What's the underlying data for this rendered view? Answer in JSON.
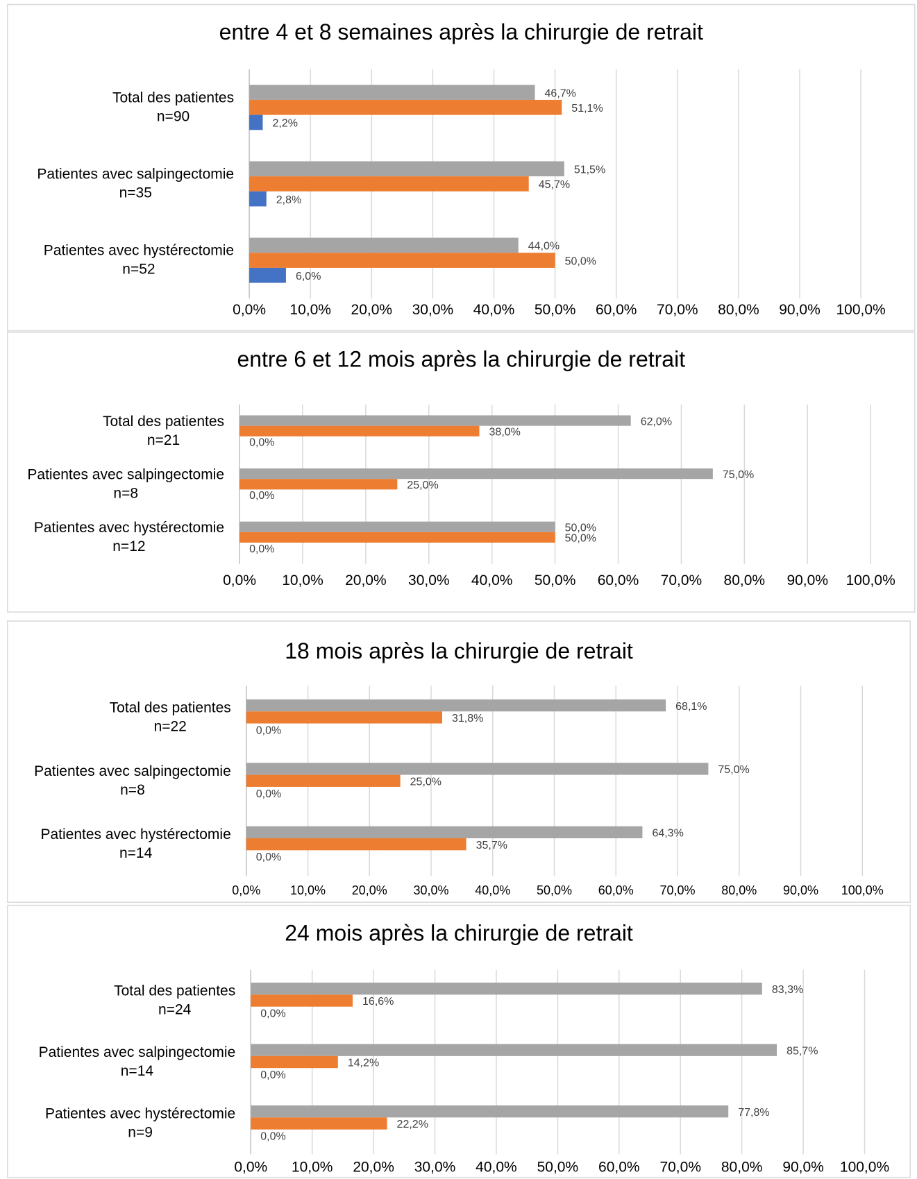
{
  "chart_data": [
    {
      "type": "bar",
      "orientation": "horizontal",
      "title": "entre 4 et 8 semaines après la chirurgie de retrait",
      "categories": [
        [
          "Total des patientes",
          "n=90"
        ],
        [
          "Patientes avec salpingectomie",
          "n=35"
        ],
        [
          "Patientes avec hystérectomie",
          "n=52"
        ]
      ],
      "series": [
        {
          "color": "#a5a5a5",
          "values": [
            46.7,
            51.5,
            44.0
          ],
          "value_labels": [
            "46,7%",
            "51,5%",
            "44,0%"
          ]
        },
        {
          "color": "#ed7d31",
          "values": [
            51.1,
            45.7,
            50.0
          ],
          "value_labels": [
            "51,1%",
            "45,7%",
            "50,0%"
          ]
        },
        {
          "color": "#4472c4",
          "values": [
            2.2,
            2.8,
            6.0
          ],
          "value_labels": [
            "2,2%",
            "2,8%",
            "6,0%"
          ]
        }
      ],
      "xlim": [
        0,
        100
      ],
      "xticks": [
        {
          "value": 0,
          "label": "0,0%"
        },
        {
          "value": 10,
          "label": "10,0%"
        },
        {
          "value": 20,
          "label": "20,0%"
        },
        {
          "value": 30,
          "label": "30,0%"
        },
        {
          "value": 40,
          "label": "40,0%"
        },
        {
          "value": 50,
          "label": "50,0%"
        },
        {
          "value": 60,
          "label": "60,0%"
        },
        {
          "value": 70,
          "label": "70,0%"
        },
        {
          "value": 80,
          "label": "80,0%"
        },
        {
          "value": 90,
          "label": "90,0%"
        },
        {
          "value": 100,
          "label": "100,0%"
        }
      ],
      "grid": true
    },
    {
      "type": "bar",
      "orientation": "horizontal",
      "title": "entre 6 et 12 mois après la chirurgie de retrait",
      "categories": [
        [
          "Total des patientes",
          "n=21"
        ],
        [
          "Patientes avec salpingectomie",
          "n=8"
        ],
        [
          "Patientes avec hystérectomie",
          "n=12"
        ]
      ],
      "series": [
        {
          "color": "#a5a5a5",
          "values": [
            62.0,
            75.0,
            50.0
          ],
          "value_labels": [
            "62,0%",
            "75,0%",
            "50,0%"
          ]
        },
        {
          "color": "#ed7d31",
          "values": [
            38.0,
            25.0,
            50.0
          ],
          "value_labels": [
            "38,0%",
            "25,0%",
            "50,0%"
          ]
        },
        {
          "color": "#4472c4",
          "values": [
            0,
            0,
            0
          ],
          "value_labels": [
            "0,0%",
            "0,0%",
            "0,0%"
          ]
        }
      ],
      "xlim": [
        0,
        100
      ],
      "xticks": [
        {
          "value": 0,
          "label": "0,0%"
        },
        {
          "value": 10,
          "label": "10,0%"
        },
        {
          "value": 20,
          "label": "20,0%"
        },
        {
          "value": 30,
          "label": "30,0%"
        },
        {
          "value": 40,
          "label": "40,0%"
        },
        {
          "value": 50,
          "label": "50,0%"
        },
        {
          "value": 60,
          "label": "60,0%"
        },
        {
          "value": 70,
          "label": "70,0%"
        },
        {
          "value": 80,
          "label": "80,0%"
        },
        {
          "value": 90,
          "label": "90,0%"
        },
        {
          "value": 100,
          "label": "100,0%"
        }
      ],
      "grid": true
    },
    {
      "type": "bar",
      "orientation": "horizontal",
      "title": "18 mois après la chirurgie de retrait",
      "categories": [
        [
          "Total des patientes",
          "n=22"
        ],
        [
          "Patientes avec salpingectomie",
          "n=8"
        ],
        [
          "Patientes avec hystérectomie",
          "n=14"
        ]
      ],
      "series": [
        {
          "color": "#a5a5a5",
          "values": [
            68.1,
            75.0,
            64.3
          ],
          "value_labels": [
            "68,1%",
            "75,0%",
            "64,3%"
          ]
        },
        {
          "color": "#ed7d31",
          "values": [
            31.8,
            25.0,
            35.7
          ],
          "value_labels": [
            "31,8%",
            "25,0%",
            "35,7%"
          ]
        },
        {
          "color": "#4472c4",
          "values": [
            0,
            0,
            0
          ],
          "value_labels": [
            "0,0%",
            "0,0%",
            "0,0%"
          ]
        }
      ],
      "xlim": [
        0,
        100
      ],
      "xticks": [
        {
          "value": 0,
          "label": "0,0%"
        },
        {
          "value": 10,
          "label": "10,0%"
        },
        {
          "value": 20,
          "label": "20,0%"
        },
        {
          "value": 30,
          "label": "30,0%"
        },
        {
          "value": 40,
          "label": "40,0%"
        },
        {
          "value": 50,
          "label": "50,0%"
        },
        {
          "value": 60,
          "label": "60,0%"
        },
        {
          "value": 70,
          "label": "70,0%"
        },
        {
          "value": 80,
          "label": "80,0%"
        },
        {
          "value": 90,
          "label": "90,0%"
        },
        {
          "value": 100,
          "label": "100,0%"
        }
      ],
      "grid": true
    },
    {
      "type": "bar",
      "orientation": "horizontal",
      "title": "24 mois après la chirurgie de retrait",
      "categories": [
        [
          "Total des patientes",
          "n=24"
        ],
        [
          "Patientes avec salpingectomie",
          "n=14"
        ],
        [
          "Patientes avec hystérectomie",
          "n=9"
        ]
      ],
      "series": [
        {
          "color": "#a5a5a5",
          "values": [
            83.3,
            85.7,
            77.8
          ],
          "value_labels": [
            "83,3%",
            "85,7%",
            "77,8%"
          ]
        },
        {
          "color": "#ed7d31",
          "values": [
            16.6,
            14.2,
            22.2
          ],
          "value_labels": [
            "16,6%",
            "14,2%",
            "22,2%"
          ]
        },
        {
          "color": "#4472c4",
          "values": [
            0,
            0,
            0
          ],
          "value_labels": [
            "0,0%",
            "0,0%",
            "0,0%"
          ]
        }
      ],
      "xlim": [
        0,
        100
      ],
      "xticks": [
        {
          "value": 0,
          "label": "0,0%"
        },
        {
          "value": 10,
          "label": "10,0%"
        },
        {
          "value": 20,
          "label": "20,0%"
        },
        {
          "value": 30,
          "label": "30,0%"
        },
        {
          "value": 40,
          "label": "40,0%"
        },
        {
          "value": 50,
          "label": "50,0%"
        },
        {
          "value": 60,
          "label": "60,0%"
        },
        {
          "value": 70,
          "label": "70,0%"
        },
        {
          "value": 80,
          "label": "80,0%"
        },
        {
          "value": 90,
          "label": "90,0%"
        },
        {
          "value": 100,
          "label": "100,0%"
        }
      ],
      "grid": true
    }
  ]
}
